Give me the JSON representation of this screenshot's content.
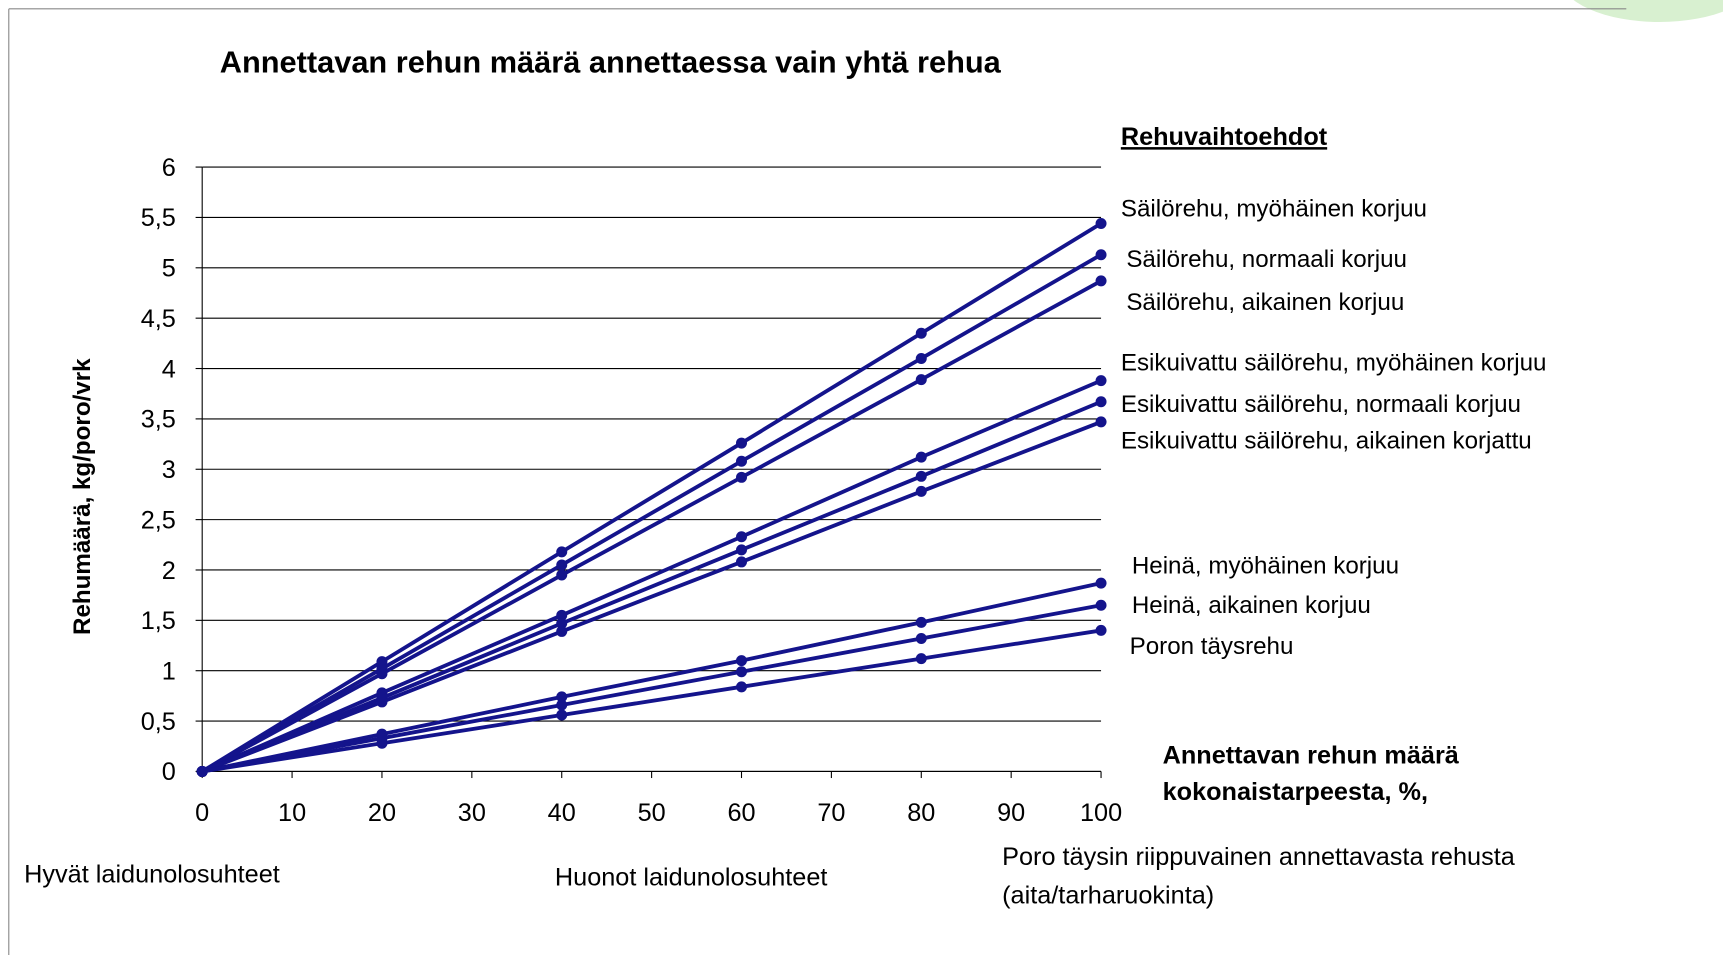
{
  "chart_data": {
    "type": "line",
    "title": "Annettavan rehun määrä annettaessa vain yhtä rehua",
    "y_label": "Rehumäärä, kg/poro/vrk",
    "x_label": [
      "Annettavan rehun määrä",
      "kokonaistarpeesta, %,"
    ],
    "legend_title": "Rehuvaihtoehdot",
    "x": [
      0,
      20,
      40,
      60,
      80,
      100
    ],
    "xlim": [
      0,
      100
    ],
    "xticks": [
      0,
      10,
      20,
      30,
      40,
      50,
      60,
      70,
      80,
      90,
      100
    ],
    "ylim": [
      0,
      6
    ],
    "yticks": [
      0,
      {
        "value": 0.5,
        "label": "0,5"
      },
      1,
      {
        "value": 1.5,
        "label": "1,5"
      },
      2,
      {
        "value": 2.5,
        "label": "2,5"
      },
      3,
      {
        "value": 3.5,
        "label": "3,5"
      },
      4,
      {
        "value": 4.5,
        "label": "4,5"
      },
      5,
      {
        "value": 5.5,
        "label": "5,5"
      },
      6
    ],
    "grid": true,
    "series": [
      {
        "name": "Säilörehu, myöhäinen korjuu",
        "color": "#14148c",
        "values": [
          0,
          1.09,
          2.18,
          3.26,
          4.35,
          5.44
        ]
      },
      {
        "name": "Säilörehu, normaali korjuu",
        "color": "#14148c",
        "values": [
          0,
          1.02,
          2.05,
          3.08,
          4.1,
          5.13
        ]
      },
      {
        "name": "Säilörehu, aikainen korjuu",
        "color": "#14148c",
        "values": [
          0,
          0.97,
          1.95,
          2.92,
          3.89,
          4.87
        ]
      },
      {
        "name": "Esikuivattu säilörehu, myöhäinen korjuu",
        "color": "#14148c",
        "values": [
          0,
          0.78,
          1.55,
          2.33,
          3.12,
          3.88
        ]
      },
      {
        "name": "Esikuivattu säilörehu, normaali korjuu",
        "color": "#14148c",
        "values": [
          0,
          0.73,
          1.47,
          2.2,
          2.93,
          3.67
        ]
      },
      {
        "name": "Esikuivattu säilörehu, aikainen korjattu",
        "color": "#14148c",
        "values": [
          0,
          0.69,
          1.39,
          2.08,
          2.78,
          3.47
        ]
      },
      {
        "name": "Heinä, myöhäinen korjuu",
        "color": "#14148c",
        "values": [
          0,
          0.37,
          0.74,
          1.1,
          1.48,
          1.87
        ]
      },
      {
        "name": "Heinä, aikainen korjuu",
        "color": "#14148c",
        "values": [
          0,
          0.33,
          0.66,
          0.99,
          1.32,
          1.65
        ]
      },
      {
        "name": "Poron täysrehu",
        "color": "#14148c",
        "values": [
          0,
          0.28,
          0.56,
          0.84,
          1.12,
          1.4
        ]
      }
    ],
    "annotations": [
      {
        "lines": [
          "Hyvät laidunolosuhteet"
        ]
      },
      {
        "lines": [
          "Huonot laidunolosuhteet"
        ]
      },
      {
        "lines": [
          "Poro täysin riippuvainen annettavasta rehusta",
          "(aita/tarharuokinta)"
        ]
      }
    ]
  }
}
